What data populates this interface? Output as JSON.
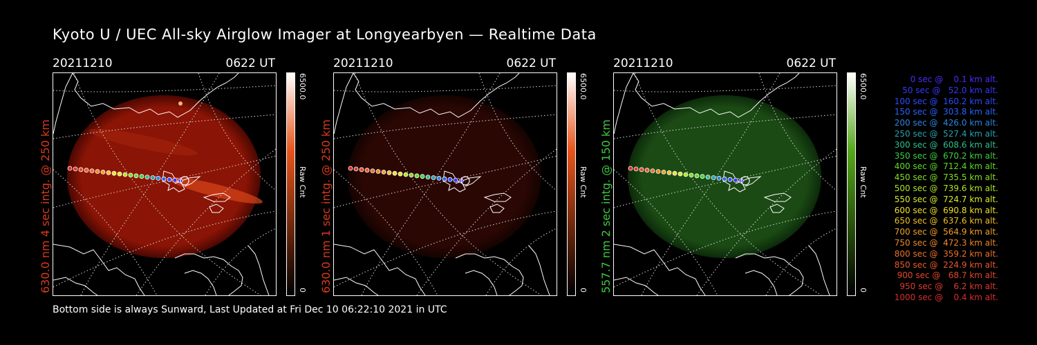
{
  "title": "Kyoto U / UEC All-sky Airglow Imager at Longyearbyen — Realtime Data",
  "panels": [
    {
      "date": "20211210",
      "time": "0622 UT",
      "label": "630.0 nm 4 sec intg. @ 250 km",
      "label_color": "#d83a1a",
      "cb_max": "6500.0",
      "cb_min": "0",
      "cb_unit": "Raw Cnt",
      "cb_top": "#ffffff",
      "cb_mid": "#e8541a",
      "cb_bot": "#000000",
      "glow": "#8a1405",
      "glow_edge": "#4a0802"
    },
    {
      "date": "20211210",
      "time": "0622 UT",
      "label": "630.0 nm 1 sec intg. @ 250 km",
      "label_color": "#d83a1a",
      "cb_max": "6500.0",
      "cb_min": "0",
      "cb_unit": "Raw Cnt",
      "cb_top": "#ffffff",
      "cb_mid": "#e8541a",
      "cb_bot": "#000000",
      "glow": "#2a0703",
      "glow_edge": "#140301"
    },
    {
      "date": "20211210",
      "time": "0622 UT",
      "label": "557.7 nm 2 sec intg. @ 150 km",
      "label_color": "#3fc93f",
      "cb_max": "6500.0",
      "cb_min": "0",
      "cb_unit": "Raw Cnt",
      "cb_top": "#ffffff",
      "cb_mid": "#55a81a",
      "cb_bot": "#000000",
      "glow": "#1b4a14",
      "glow_edge": "#0c2a0a"
    }
  ],
  "footer": "Bottom side is always Sunward, Last Updated at Fri Dec 10 06:22:10 2021 in UTC",
  "legend": [
    {
      "text": "0 sec @    0.1 km alt.",
      "color": "#4a2cff"
    },
    {
      "text": "50 sec @   52.0 km alt.",
      "color": "#3a35ff"
    },
    {
      "text": "100 sec @  160.2 km alt.",
      "color": "#2e4cff"
    },
    {
      "text": "150 sec @  303.8 km alt.",
      "color": "#2a62ff"
    },
    {
      "text": "200 sec @  426.0 km alt.",
      "color": "#2b86e0"
    },
    {
      "text": "250 sec @  527.4 km alt.",
      "color": "#2aa0b0"
    },
    {
      "text": "300 sec @  608.6 km alt.",
      "color": "#2ec08a"
    },
    {
      "text": "350 sec @  670.2 km alt.",
      "color": "#3fd040"
    },
    {
      "text": "400 sec @  712.4 km alt.",
      "color": "#5cdc2a"
    },
    {
      "text": "450 sec @  735.5 km alt.",
      "color": "#84e025"
    },
    {
      "text": "500 sec @  739.6 km alt.",
      "color": "#b2e624"
    },
    {
      "text": "550 sec @  724.7 km alt.",
      "color": "#dcec2a"
    },
    {
      "text": "600 sec @  690.8 km alt.",
      "color": "#f0e02a"
    },
    {
      "text": "650 sec @  637.6 km alt.",
      "color": "#f2c02a"
    },
    {
      "text": "700 sec @  564.9 km alt.",
      "color": "#f0a02a"
    },
    {
      "text": "750 sec @  472.3 km alt.",
      "color": "#ee882a"
    },
    {
      "text": "800 sec @  359.2 km alt.",
      "color": "#ec702a"
    },
    {
      "text": "850 sec @  224.9 km alt.",
      "color": "#e85a2a"
    },
    {
      "text": "900 sec @   68.7 km alt.",
      "color": "#e4482a"
    },
    {
      "text": "950 sec @    6.2 km alt.",
      "color": "#e03a2a"
    },
    {
      "text": "1000 sec @    0.4 km alt.",
      "color": "#dc2e2a"
    }
  ]
}
